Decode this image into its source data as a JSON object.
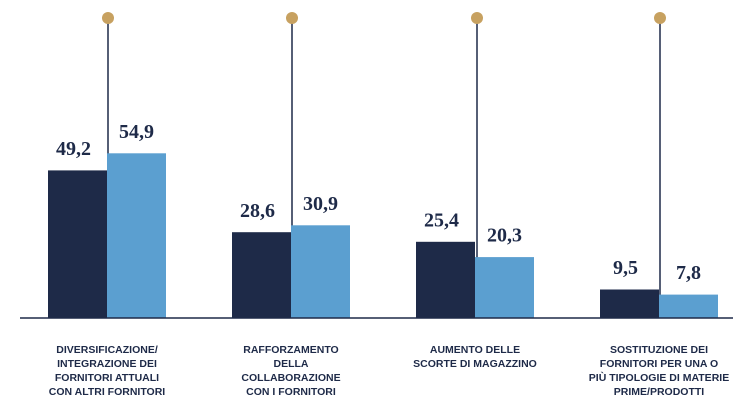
{
  "chart_data": {
    "type": "bar",
    "categories": [
      [
        "DIVERSIFICAZIONE/",
        "INTEGRAZIONE DEI",
        "FORNITORI ATTUALI",
        "CON ALTRI FORNITORI"
      ],
      [
        "RAFFORZAMENTO",
        "DELLA",
        "COLLABORAZIONE",
        "CON I FORNITORI"
      ],
      [
        "AUMENTO DELLE",
        "SCORTE DI MAGAZZINO"
      ],
      [
        "SOSTITUZIONE DEI",
        "FORNITORI PER UNA O",
        "PIÙ TIPOLOGIE DI MATERIE",
        "PRIME/PRODOTTI"
      ]
    ],
    "series": [
      {
        "color": "#1e2a48",
        "values": [
          49.2,
          28.6,
          25.4,
          9.5
        ],
        "value_labels": [
          "49,2",
          "28,6",
          "25,4",
          "9,5"
        ]
      },
      {
        "color": "#5b9fd0",
        "values": [
          54.9,
          30.9,
          20.3,
          7.8
        ],
        "value_labels": [
          "54,9",
          "30,9",
          "20,3",
          "7,8"
        ]
      }
    ],
    "ylim": [
      0,
      56
    ]
  }
}
